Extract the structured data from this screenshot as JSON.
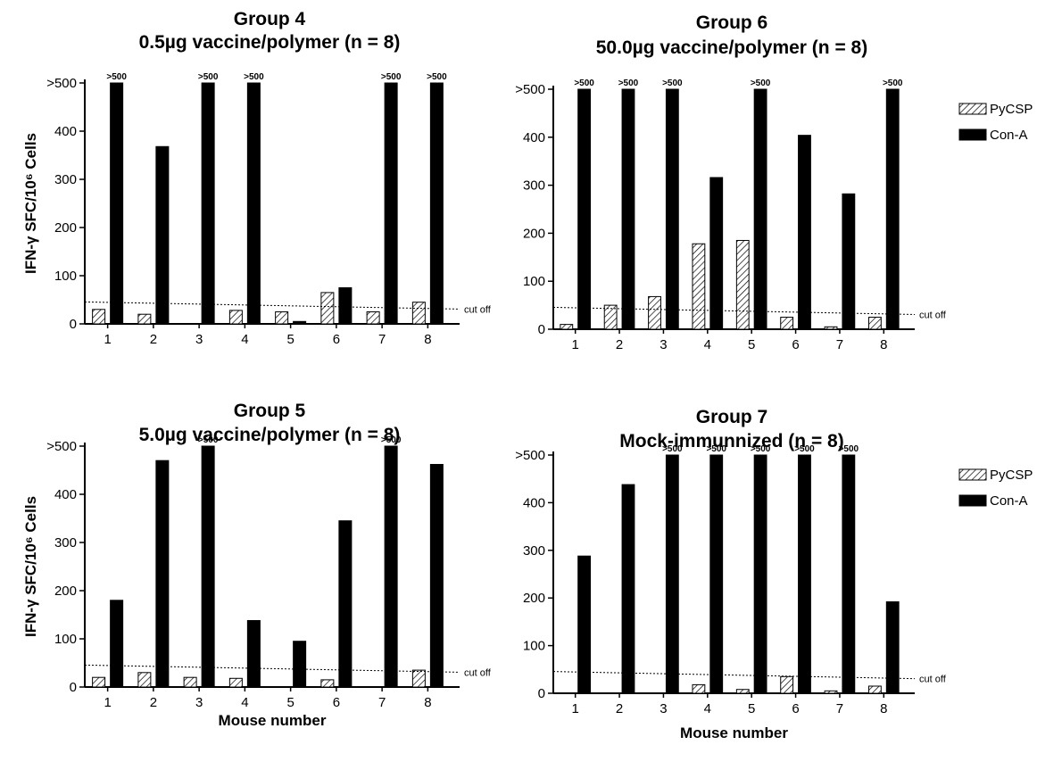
{
  "ylabel": "IFN-γ SFC/10⁶ Cells",
  "chart_data": [
    {
      "type": "bar",
      "title": "Group 4",
      "subtitle": "0.5µg vaccine/polymer (n = 8)",
      "categories": [
        "1",
        "2",
        "3",
        "4",
        "5",
        "6",
        "7",
        "8"
      ],
      "series": [
        {
          "name": "PyCSP",
          "values": [
            30,
            20,
            0,
            28,
            25,
            65,
            25,
            45
          ]
        },
        {
          "name": "Con-A",
          "values": [
            500,
            368,
            500,
            500,
            5,
            75,
            500,
            500
          ]
        }
      ],
      "ylim": [
        0,
        500
      ],
      "yticks": [
        "0",
        "100",
        "200",
        "300",
        "400",
        ">500"
      ],
      "cutoff": 40,
      "cutoff_label": "cut off",
      "annotations": [
        {
          "category": "1",
          "series": "Con-A",
          "text": ">500"
        },
        {
          "category": "3",
          "series": "Con-A",
          "text": ">500"
        },
        {
          "category": "4",
          "series": "Con-A",
          "text": ">500"
        },
        {
          "category": "7",
          "series": "Con-A",
          "text": ">500"
        },
        {
          "category": "8",
          "series": "Con-A",
          "text": ">500"
        }
      ],
      "xlabel": "",
      "ylabel": "IFN-γ SFC/10⁶ Cells",
      "legend": []
    },
    {
      "type": "bar",
      "title": "Group 6",
      "subtitle": "50.0µg vaccine/polymer (n = 8)",
      "categories": [
        "1",
        "2",
        "3",
        "4",
        "5",
        "6",
        "7",
        "8"
      ],
      "series": [
        {
          "name": "PyCSP",
          "values": [
            10,
            50,
            68,
            178,
            185,
            25,
            5,
            25
          ]
        },
        {
          "name": "Con-A",
          "values": [
            500,
            500,
            500,
            316,
            500,
            404,
            282,
            500
          ]
        }
      ],
      "ylim": [
        0,
        500
      ],
      "yticks": [
        "0",
        "100",
        "200",
        "300",
        "400",
        ">500"
      ],
      "cutoff": 40,
      "cutoff_label": "cut off",
      "annotations": [
        {
          "category": "1",
          "series": "Con-A",
          "text": ">500"
        },
        {
          "category": "2",
          "series": "Con-A",
          "text": ">500"
        },
        {
          "category": "3",
          "series": "Con-A",
          "text": ">500"
        },
        {
          "category": "5",
          "series": "Con-A",
          "text": ">500"
        },
        {
          "category": "8",
          "series": "Con-A",
          "text": ">500"
        }
      ],
      "xlabel": "",
      "ylabel": "",
      "legend": [
        "PyCSP",
        "Con-A"
      ]
    },
    {
      "type": "bar",
      "title": "Group 5",
      "subtitle": "5.0µg vaccine/polymer (n = 8)",
      "categories": [
        "1",
        "2",
        "3",
        "4",
        "5",
        "6",
        "7",
        "8"
      ],
      "series": [
        {
          "name": "PyCSP",
          "values": [
            20,
            30,
            20,
            18,
            0,
            15,
            0,
            35
          ]
        },
        {
          "name": "Con-A",
          "values": [
            180,
            470,
            500,
            138,
            95,
            345,
            500,
            462
          ]
        }
      ],
      "ylim": [
        0,
        500
      ],
      "yticks": [
        "0",
        "100",
        "200",
        "300",
        "400",
        ">500"
      ],
      "cutoff": 40,
      "cutoff_label": "cut off",
      "annotations": [
        {
          "category": "3",
          "series": "Con-A",
          "text": ">500"
        },
        {
          "category": "7",
          "series": "Con-A",
          "text": ">500"
        }
      ],
      "xlabel": "Mouse number",
      "ylabel": "IFN-γ SFC/10⁶ Cells",
      "legend": []
    },
    {
      "type": "bar",
      "title": "Group 7",
      "subtitle": "Mock-immunnized (n = 8)",
      "categories": [
        "1",
        "2",
        "3",
        "4",
        "5",
        "6",
        "7",
        "8"
      ],
      "series": [
        {
          "name": "PyCSP",
          "values": [
            0,
            0,
            0,
            18,
            8,
            35,
            5,
            15
          ]
        },
        {
          "name": "Con-A",
          "values": [
            288,
            438,
            500,
            500,
            500,
            500,
            500,
            192
          ]
        }
      ],
      "ylim": [
        0,
        500
      ],
      "yticks": [
        "0",
        "100",
        "200",
        "300",
        "400",
        ">500"
      ],
      "cutoff": 40,
      "cutoff_label": "cut off",
      "annotations": [
        {
          "category": "3",
          "series": "Con-A",
          "text": ">500"
        },
        {
          "category": "4",
          "series": "Con-A",
          "text": ">500"
        },
        {
          "category": "5",
          "series": "Con-A",
          "text": ">500"
        },
        {
          "category": "6",
          "series": "Con-A",
          "text": ">500"
        },
        {
          "category": "7",
          "series": "Con-A",
          "text": ">500"
        }
      ],
      "xlabel": "Mouse number",
      "ylabel": "",
      "legend": [
        "PyCSP",
        "Con-A"
      ]
    }
  ]
}
